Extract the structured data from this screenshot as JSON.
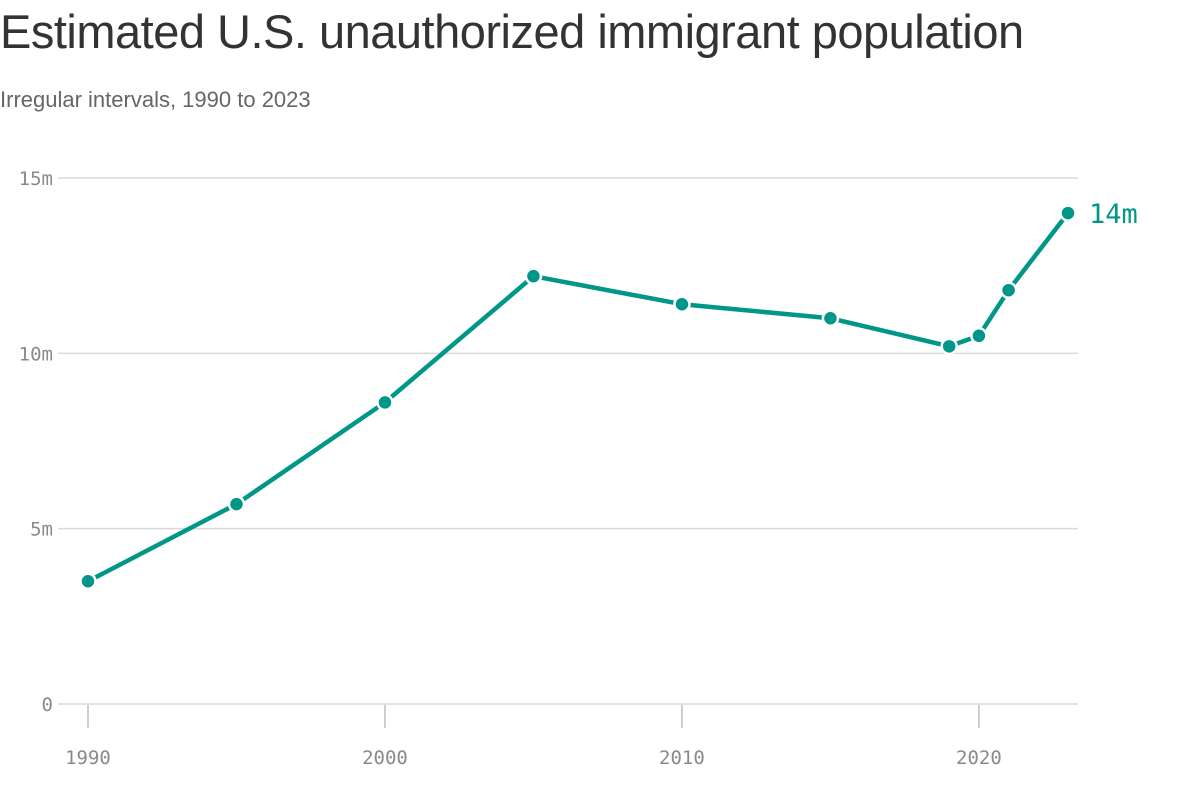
{
  "chart_data": {
    "type": "line",
    "title": "Estimated U.S. unauthorized immigrant population",
    "subtitle": "Irregular intervals, 1990 to 2023",
    "xlabel": "",
    "ylabel": "",
    "x_range": [
      1990,
      2023
    ],
    "x_ticks": [
      1990,
      2000,
      2010,
      2020
    ],
    "x_tick_labels": [
      "1990",
      "2000",
      "2010",
      "2020"
    ],
    "ylim": [
      0,
      15
    ],
    "y_ticks": [
      0,
      5,
      10,
      15
    ],
    "y_tick_labels": [
      "0",
      "5m",
      "10m",
      "15m"
    ],
    "grid": true,
    "legend": "none",
    "series": [
      {
        "color": "#009688",
        "points": [
          {
            "x": 1990,
            "y": 3.5
          },
          {
            "x": 1995,
            "y": 5.7
          },
          {
            "x": 2000,
            "y": 8.6
          },
          {
            "x": 2005,
            "y": 12.2
          },
          {
            "x": 2010,
            "y": 11.4
          },
          {
            "x": 2015,
            "y": 11.0
          },
          {
            "x": 2019,
            "y": 10.2
          },
          {
            "x": 2020,
            "y": 10.5
          },
          {
            "x": 2021,
            "y": 11.8
          },
          {
            "x": 2023,
            "y": 14.0
          }
        ]
      }
    ],
    "annotations": [
      {
        "text": "14m",
        "x": 2023,
        "y": 14.0
      }
    ]
  }
}
